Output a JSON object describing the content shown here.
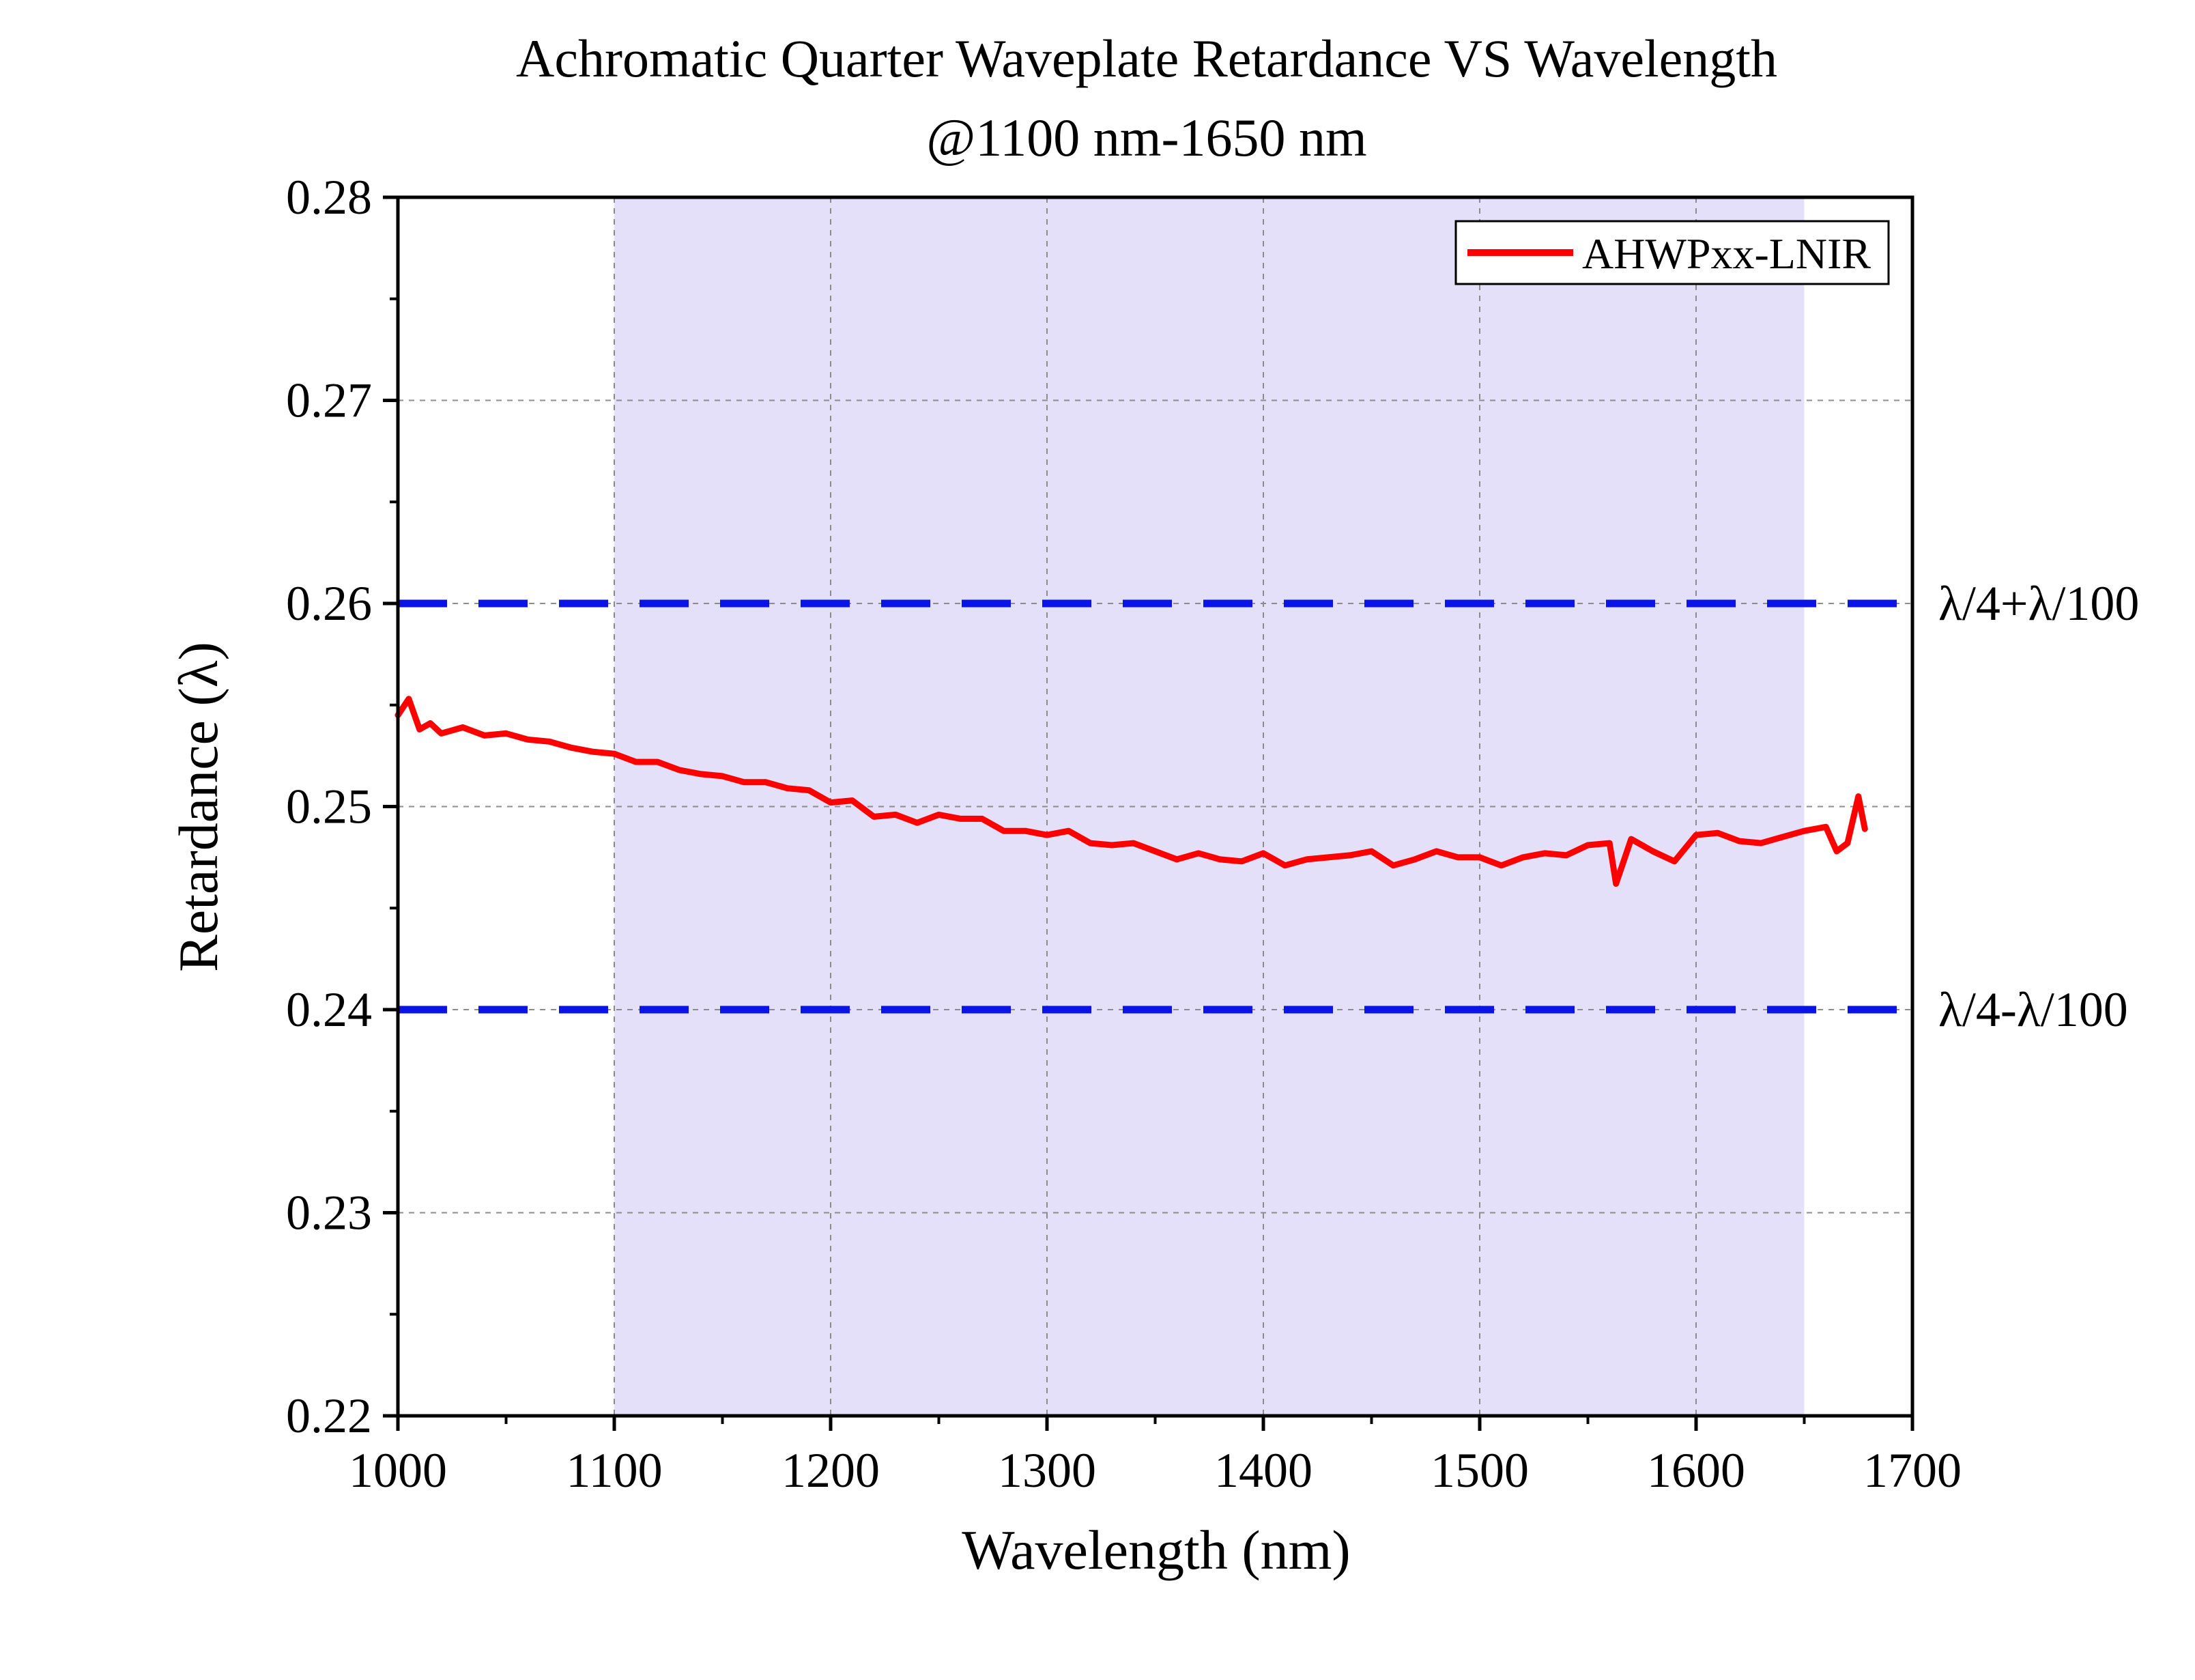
{
  "chart_data": {
    "type": "line",
    "title": "Achromatic Quarter Waveplate Retardance VS Wavelength",
    "subtitle": "@1100 nm-1650 nm",
    "xlabel": "Wavelength (nm)",
    "ylabel": "Retardance (λ)",
    "xlim": [
      1000,
      1700
    ],
    "ylim": [
      0.22,
      0.28
    ],
    "xticks": [
      "1000",
      "1100",
      "1200",
      "1300",
      "1400",
      "1500",
      "1600",
      "1700"
    ],
    "yticks": [
      "0.22",
      "0.23",
      "0.24",
      "0.25",
      "0.26",
      "0.27",
      "0.28"
    ],
    "grid": true,
    "legend_position": "top-right",
    "shaded_band": {
      "x_from": 1100,
      "x_to": 1650,
      "color": "#e4e0fa"
    },
    "reference_lines": [
      {
        "y": 0.26,
        "label": "λ/4+λ/100",
        "color": "#0a14e6"
      },
      {
        "y": 0.24,
        "label": "λ/4-λ/100",
        "color": "#0a14e6"
      }
    ],
    "series": [
      {
        "name": "AHWPxx-LNIR",
        "color": "#ff0000",
        "x": [
          1000,
          1005,
          1010,
          1015,
          1020,
          1030,
          1040,
          1050,
          1060,
          1070,
          1080,
          1090,
          1100,
          1110,
          1120,
          1130,
          1140,
          1150,
          1160,
          1170,
          1180,
          1190,
          1200,
          1210,
          1220,
          1230,
          1240,
          1250,
          1260,
          1270,
          1280,
          1290,
          1300,
          1310,
          1320,
          1330,
          1340,
          1350,
          1360,
          1370,
          1380,
          1390,
          1400,
          1410,
          1420,
          1430,
          1440,
          1450,
          1460,
          1470,
          1480,
          1490,
          1500,
          1510,
          1520,
          1530,
          1540,
          1550,
          1560,
          1563,
          1570,
          1580,
          1590,
          1600,
          1610,
          1620,
          1630,
          1640,
          1650,
          1660,
          1665,
          1670,
          1675,
          1678
        ],
        "y": [
          0.2545,
          0.2553,
          0.2538,
          0.2541,
          0.2536,
          0.2539,
          0.2535,
          0.2536,
          0.2533,
          0.2532,
          0.2529,
          0.2527,
          0.2526,
          0.2522,
          0.2522,
          0.2518,
          0.2516,
          0.2515,
          0.2512,
          0.2512,
          0.2509,
          0.2508,
          0.2502,
          0.2503,
          0.2495,
          0.2496,
          0.2492,
          0.2496,
          0.2494,
          0.2494,
          0.2488,
          0.2488,
          0.2486,
          0.2488,
          0.2482,
          0.2481,
          0.2482,
          0.2478,
          0.2474,
          0.2477,
          0.2474,
          0.2473,
          0.2477,
          0.2471,
          0.2474,
          0.2475,
          0.2476,
          0.2478,
          0.2471,
          0.2474,
          0.2478,
          0.2475,
          0.2475,
          0.2471,
          0.2475,
          0.2477,
          0.2476,
          0.2481,
          0.2482,
          0.2462,
          0.2484,
          0.2478,
          0.2473,
          0.2486,
          0.2487,
          0.2483,
          0.2482,
          0.2485,
          0.2488,
          0.249,
          0.2478,
          0.2482,
          0.2505,
          0.2489
        ]
      }
    ]
  }
}
